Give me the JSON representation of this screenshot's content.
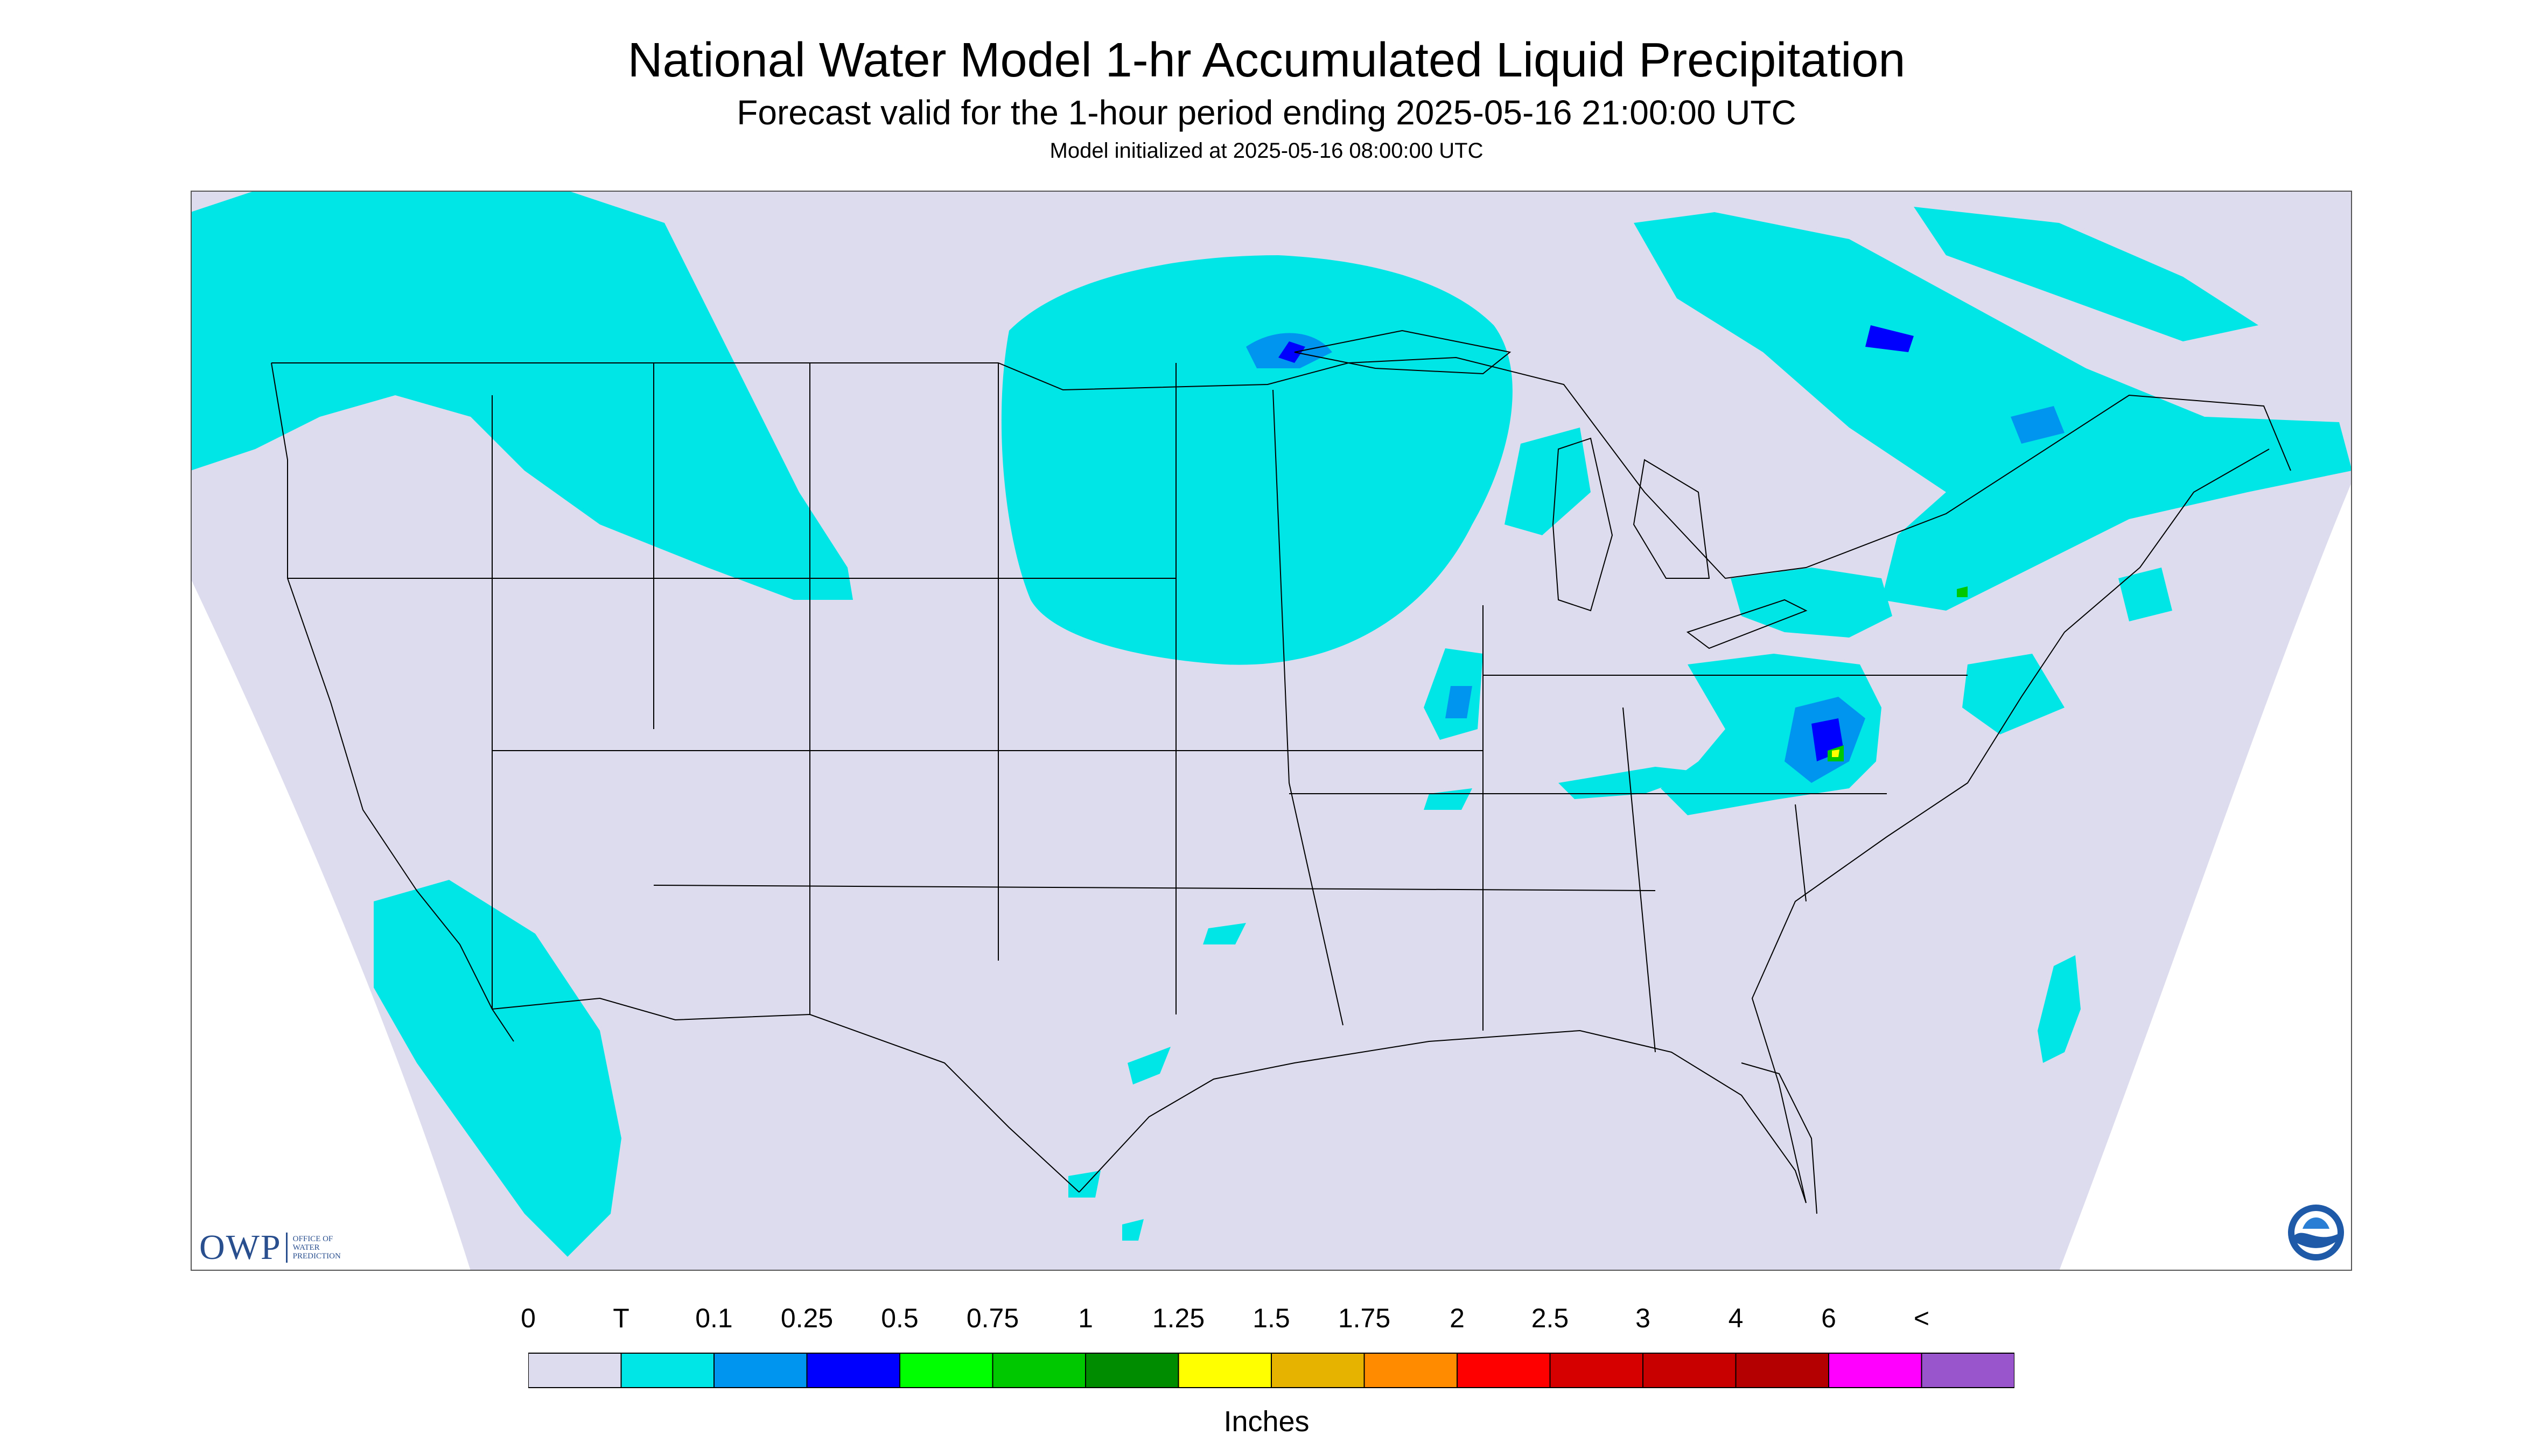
{
  "header": {
    "title": "National Water Model 1-hr Accumulated Liquid Precipitation",
    "subtitle": "Forecast valid for the 1-hour period ending 2025-05-16 21:00:00 UTC",
    "model_init": "Model initialized at 2025-05-16 08:00:00 UTC"
  },
  "legend": {
    "labels": [
      "0",
      "T",
      "0.1",
      "0.25",
      "0.5",
      "0.75",
      "1",
      "1.25",
      "1.5",
      "1.75",
      "2",
      "2.5",
      "3",
      "4",
      "6",
      "<"
    ],
    "colors": [
      "#dcdcee",
      "#00e6e6",
      "#0096f0",
      "#0000ff",
      "#00ff00",
      "#00c800",
      "#008c00",
      "#ffff00",
      "#e6b400",
      "#ff8c00",
      "#ff0000",
      "#d70000",
      "#c80000",
      "#b40000",
      "#ff00ff",
      "#9955cc"
    ],
    "units": "Inches"
  },
  "branding": {
    "owp_logo": "OWP",
    "owp_text": "OFFICE OF WATER PREDICTION",
    "noaa_logo": "NOAA",
    "owp_icon": "owp-logo-icon",
    "noaa_icon": "noaa-logo-icon"
  },
  "map_colors": {
    "background": "#dcdcee",
    "trace": "#00e6e6",
    "light": "#0096f0",
    "moderate": "#0000ff",
    "heavy": "#00c800",
    "extreme": "#ffff00",
    "borders": "#000000"
  }
}
